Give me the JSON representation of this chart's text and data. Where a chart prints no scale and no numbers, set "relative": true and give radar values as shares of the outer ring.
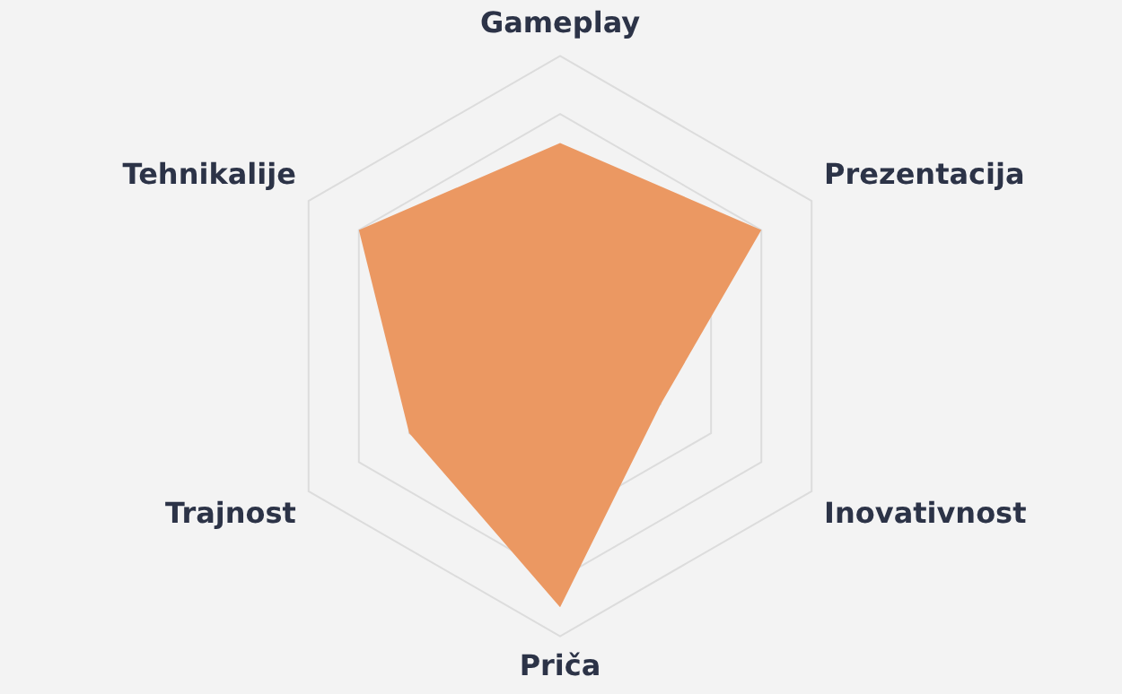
{
  "chart_data": {
    "type": "radar",
    "relative": true,
    "grid": true,
    "legend": false,
    "marker": "none",
    "categories": [
      "Gameplay",
      "Prezentacija",
      "Inovativnost",
      "Priča",
      "Trajnost",
      "Tehnikalije"
    ],
    "series": [
      {
        "color": "#eb9862",
        "values": [
          0.7,
          0.8,
          0.4,
          0.9,
          0.6,
          0.8
        ]
      }
    ]
  }
}
